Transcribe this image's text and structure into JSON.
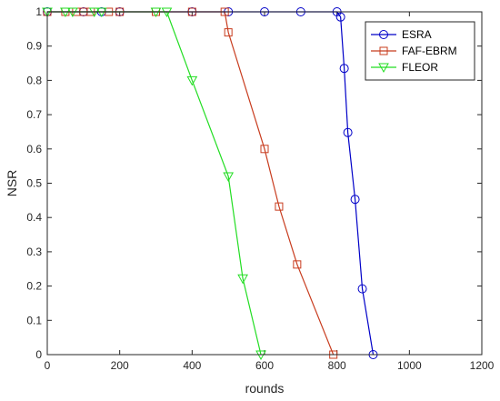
{
  "chart_data": {
    "type": "line",
    "title": "",
    "xlabel": "rounds",
    "ylabel": "NSR",
    "xlim": [
      0,
      1200
    ],
    "ylim": [
      0,
      1
    ],
    "xticks": [
      0,
      200,
      400,
      600,
      800,
      1000,
      1200
    ],
    "xtick_labels": [
      "0",
      "200",
      "400",
      "600",
      "800",
      "1000",
      "1200"
    ],
    "yticks": [
      0,
      0.1,
      0.2,
      0.3,
      0.4,
      0.5,
      0.6,
      0.7,
      0.8,
      0.9,
      1
    ],
    "ytick_labels": [
      "0",
      "0.1",
      "0.2",
      "0.3",
      "0.4",
      "0.5",
      "0.6",
      "0.7",
      "0.8",
      "0.9",
      "1"
    ],
    "grid": false,
    "legend_position": "top-right",
    "series": [
      {
        "name": "ESRA",
        "color": "#0000c8",
        "marker": "circle",
        "x": [
          0,
          100,
          150,
          200,
          400,
          500,
          600,
          700,
          800,
          810,
          820,
          830,
          850,
          870,
          900
        ],
        "y": [
          1,
          1,
          1,
          1,
          1,
          1,
          1,
          1,
          1,
          0.985,
          0.835,
          0.648,
          0.453,
          0.192,
          0
        ]
      },
      {
        "name": "FAF-EBRM",
        "color": "#c83c1e",
        "marker": "square",
        "x": [
          0,
          50,
          80,
          100,
          120,
          170,
          200,
          300,
          400,
          490,
          500,
          600,
          640,
          690,
          790
        ],
        "y": [
          1,
          1,
          1,
          1,
          1,
          1,
          1,
          1,
          1,
          1,
          0.94,
          0.6,
          0.432,
          0.263,
          0
        ]
      },
      {
        "name": "FLEOR",
        "color": "#22dd22",
        "marker": "triangle-down",
        "x": [
          0,
          50,
          70,
          130,
          150,
          300,
          330,
          400,
          500,
          540,
          590
        ],
        "y": [
          1,
          1,
          1,
          1,
          1,
          1,
          1,
          0.8,
          0.52,
          0.222,
          0
        ]
      }
    ]
  }
}
